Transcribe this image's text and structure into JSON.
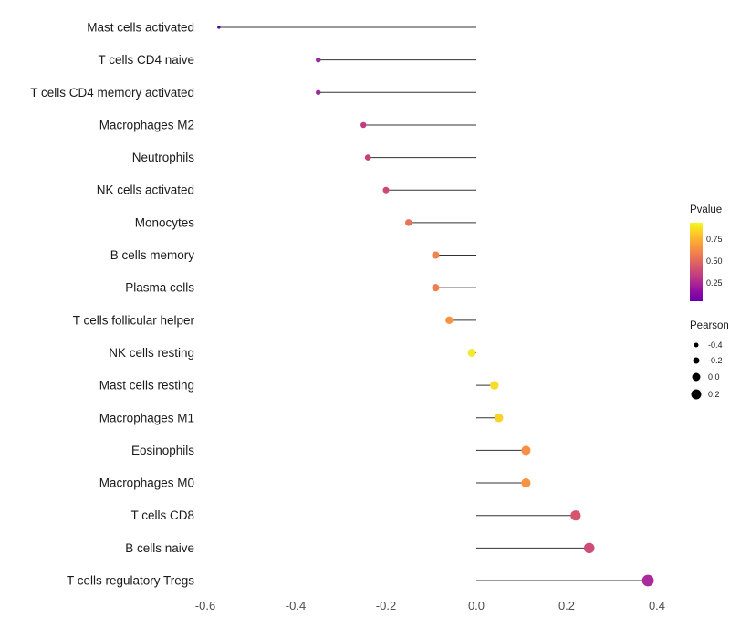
{
  "figure": {
    "background": "#ffffff"
  },
  "chart_data": {
    "type": "scatter",
    "variant": "lollipop",
    "title": "",
    "xlabel": "",
    "ylabel": "",
    "xlim": [
      -0.6,
      0.4
    ],
    "baseline": 0,
    "x_ticks": [
      "-0.6",
      "-0.4",
      "-0.2",
      "0.0",
      "0.2",
      "0.4"
    ],
    "x_tick_values": [
      -0.6,
      -0.4,
      -0.2,
      0.0,
      0.2,
      0.4
    ],
    "categories": [
      "Mast cells activated",
      "T cells CD4 naive",
      "T cells CD4 memory activated",
      "Macrophages M2",
      "Neutrophils",
      "NK cells activated",
      "Monocytes",
      "B cells memory",
      "Plasma cells",
      "T cells follicular helper",
      "NK cells resting",
      "Mast cells resting",
      "Macrophages M1",
      "Eosinophils",
      "Macrophages M0",
      "T cells CD8",
      "B cells naive",
      "T cells regulatory Tregs"
    ],
    "series": [
      {
        "name": "Pearson",
        "values": [
          -0.57,
          -0.35,
          -0.35,
          -0.25,
          -0.24,
          -0.2,
          -0.15,
          -0.09,
          -0.09,
          -0.06,
          -0.01,
          0.04,
          0.05,
          0.11,
          0.11,
          0.22,
          0.25,
          0.38
        ]
      }
    ],
    "pvalue_estimated": [
      0.05,
      0.3,
      0.3,
      0.45,
      0.47,
      0.5,
      0.65,
      0.72,
      0.7,
      0.78,
      0.95,
      0.88,
      0.87,
      0.72,
      0.72,
      0.52,
      0.47,
      0.27
    ],
    "point_colors": [
      "#4903a0",
      "#982d9e",
      "#982d9e",
      "#c23c82",
      "#c64079",
      "#cc4778",
      "#e8735a",
      "#f1844c",
      "#ef7e50",
      "#f89441",
      "#f0e832",
      "#f5dd2c",
      "#f8d32a",
      "#f79044",
      "#f89441",
      "#d6556d",
      "#cf4c79",
      "#aa2a9c"
    ],
    "line_color": "#333333",
    "legend": {
      "pvalue": {
        "title": "Pvalue",
        "tick_labels": [
          "0.75",
          "0.50",
          "0.25"
        ],
        "gradient": [
          "#f0f921",
          "#fcce25",
          "#fca636",
          "#f2844b",
          "#e16462",
          "#cc4778",
          "#b12a90",
          "#8f0da4",
          "#6a00a8"
        ]
      },
      "pearson": {
        "title": "Pearson",
        "tick_labels": [
          "-0.4",
          "-0.2",
          "0.0",
          "0.2"
        ],
        "tick_values": [
          -0.4,
          -0.2,
          0.0,
          0.2
        ],
        "dot_color": "#000000"
      }
    }
  }
}
